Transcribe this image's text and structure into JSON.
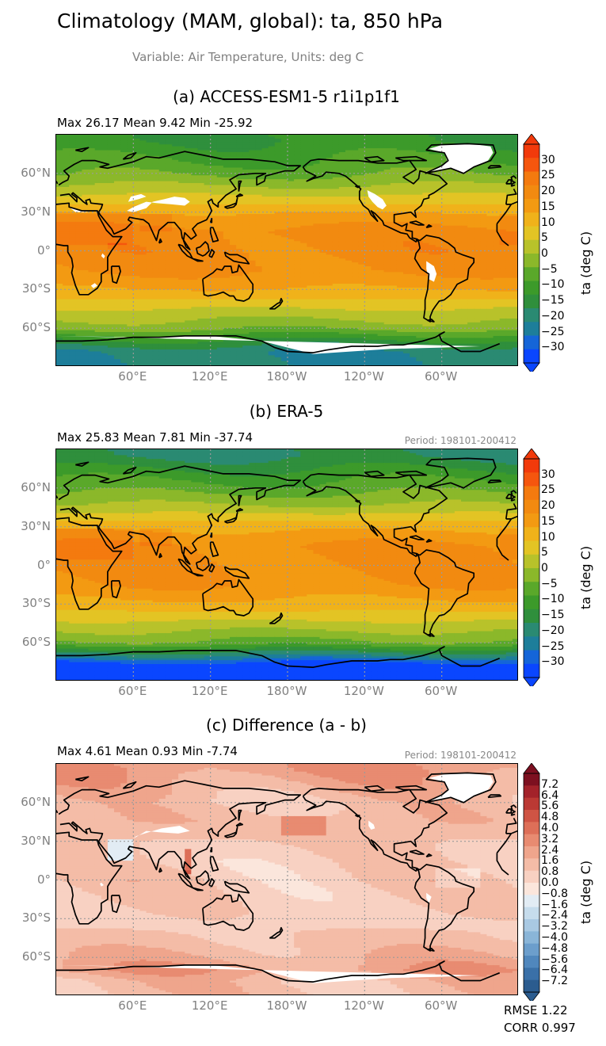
{
  "title": "Climatology (MAM, global): ta, 850 hPa",
  "subtitle": "Variable: Air Temperature, Units: deg C",
  "lat_ticks": [
    "60°N",
    "30°N",
    "0°",
    "30°S",
    "60°S"
  ],
  "lon_ticks": [
    "60°E",
    "120°E",
    "180°W",
    "120°W",
    "60°W"
  ],
  "panels": [
    {
      "title": "(a) ACCESS-ESM1-5 r1i1p1f1",
      "stats": "Max 26.17 Mean 9.42 Min -25.92",
      "period": "",
      "colorbar": {
        "label": "ta (deg C)",
        "ticks": [
          "30",
          "25",
          "20",
          "15",
          "10",
          "5",
          "0",
          "−5",
          "−10",
          "−15",
          "−20",
          "−25",
          "−30"
        ]
      }
    },
    {
      "title": "(b) ERA-5",
      "stats": "Max 25.83 Mean 7.81 Min -37.74",
      "period": "Period: 198101-200412",
      "colorbar": {
        "label": "ta (deg C)",
        "ticks": [
          "30",
          "25",
          "20",
          "15",
          "10",
          "5",
          "0",
          "−5",
          "−10",
          "−15",
          "−20",
          "−25",
          "−30"
        ]
      }
    },
    {
      "title": "(c) Difference (a - b)",
      "stats": "Max 4.61 Mean 0.93 Min -7.74",
      "period": "Period: 198101-200412",
      "colorbar": {
        "label": "ta (deg C)",
        "ticks": [
          "7.2",
          "6.4",
          "5.6",
          "4.8",
          "4.0",
          "3.2",
          "2.4",
          "1.6",
          "0.8",
          "0.0",
          "−0.8",
          "−1.6",
          "−2.4",
          "−3.2",
          "−4.0",
          "−4.8",
          "−5.6",
          "−6.4",
          "−7.2"
        ]
      }
    }
  ],
  "metrics": {
    "rmse": "RMSE 1.22",
    "corr": "CORR 0.997"
  },
  "chart_data": [
    {
      "type": "heatmap",
      "title": "(a) ACCESS-ESM1-5 r1i1p1f1",
      "projection": "PlateCarree centered 180",
      "xlim": [
        0,
        360
      ],
      "ylim": [
        -90,
        90
      ],
      "colorbar_range": [
        -32.5,
        32.5
      ],
      "summary": {
        "max": 26.17,
        "mean": 9.42,
        "min": -25.92
      },
      "zonal_profile": {
        "lat": [
          85,
          70,
          60,
          45,
          30,
          15,
          0,
          -15,
          -30,
          -45,
          -60,
          -70,
          -78
        ],
        "value": [
          -12,
          -8,
          -5,
          3,
          12,
          18,
          18,
          17,
          12,
          4,
          -3,
          -13,
          -20
        ]
      }
    },
    {
      "type": "heatmap",
      "title": "(b) ERA-5",
      "projection": "PlateCarree centered 180",
      "xlim": [
        0,
        360
      ],
      "ylim": [
        -90,
        90
      ],
      "colorbar_range": [
        -32.5,
        32.5
      ],
      "summary": {
        "max": 25.83,
        "mean": 7.81,
        "min": -37.74
      },
      "zonal_profile": {
        "lat": [
          85,
          70,
          60,
          45,
          30,
          15,
          0,
          -15,
          -30,
          -45,
          -60,
          -70,
          -78
        ],
        "value": [
          -17,
          -10,
          -6,
          1,
          11,
          17,
          17,
          16,
          11,
          3,
          -5,
          -20,
          -33
        ]
      }
    },
    {
      "type": "heatmap",
      "title": "(c) Difference (a - b)",
      "projection": "PlateCarree centered 180",
      "xlim": [
        0,
        360
      ],
      "ylim": [
        -90,
        90
      ],
      "colorbar_range": [
        -7.6,
        7.6
      ],
      "summary": {
        "max": 4.61,
        "mean": 0.93,
        "min": -7.74,
        "rmse": 1.22,
        "corr": 0.997
      },
      "zonal_profile": {
        "lat": [
          85,
          70,
          60,
          45,
          30,
          15,
          0,
          -15,
          -30,
          -45,
          -60,
          -70,
          -78
        ],
        "value": [
          2.4,
          1.6,
          1.0,
          1.4,
          0.9,
          0.6,
          0.8,
          0.7,
          0.6,
          1.0,
          1.6,
          2.2,
          1.2
        ]
      }
    }
  ]
}
